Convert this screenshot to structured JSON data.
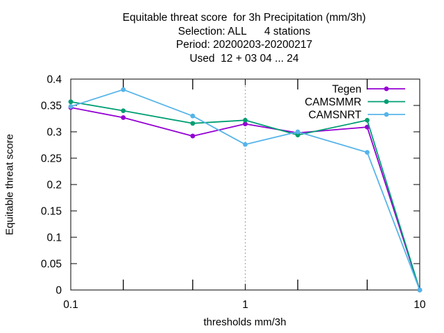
{
  "chart_data": {
    "type": "line",
    "title": [
      "Equitable threat score  for 3h Precipitation (mm/3h)",
      "Selection: ALL      4 stations",
      "Period: 20200203-20200217",
      "Used  12 + 03 04 ... 24"
    ],
    "xlabel": "thresholds mm/3h",
    "ylabel": "Equitable threat score",
    "xscale": "log",
    "xlim": [
      0.1,
      10
    ],
    "ylim": [
      0,
      0.4
    ],
    "x_tick_labels": [
      "0.1",
      "1",
      "10"
    ],
    "y_tick_labels": [
      "0",
      "0.05",
      "0.1",
      "0.15",
      "0.2",
      "0.25",
      "0.3",
      "0.35",
      "0.4"
    ],
    "grid": "dashed vertical lines at decades",
    "legend_position": "top-right",
    "x": [
      0.1,
      0.2,
      0.5,
      1,
      2,
      5,
      10
    ],
    "series": [
      {
        "name": "Tegen",
        "color": "#9400d3",
        "values": [
          0.346,
          0.327,
          0.292,
          0.315,
          0.298,
          0.309,
          0.0
        ]
      },
      {
        "name": "CAMSMMR",
        "color": "#009e73",
        "values": [
          0.357,
          0.34,
          0.316,
          0.322,
          0.294,
          0.322,
          0.0
        ]
      },
      {
        "name": "CAMSNRT",
        "color": "#56b4e9",
        "values": [
          0.348,
          0.38,
          0.33,
          0.276,
          0.3,
          0.261,
          0.0
        ]
      }
    ]
  }
}
